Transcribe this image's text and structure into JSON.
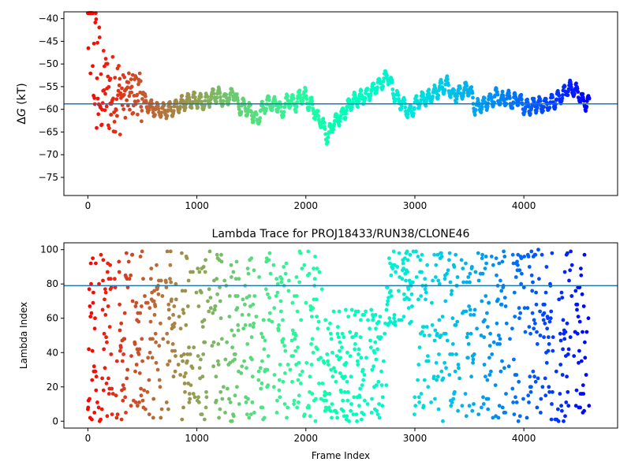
{
  "chart_data": [
    {
      "type": "scatter",
      "title": "",
      "xlabel": "",
      "ylabel_prefix": "Δ",
      "ylabel_var": "G",
      "ylabel_suffix": " (kT)",
      "xlim": [
        -220,
        4860
      ],
      "ylim": [
        -79,
        -38.5
      ],
      "xticks": [
        0,
        1000,
        2000,
        3000,
        4000
      ],
      "yticks": [
        -75,
        -70,
        -65,
        -60,
        -55,
        -50,
        -45,
        -40
      ],
      "hline": {
        "y": -58.8,
        "color": "#1f77b4"
      },
      "x_max": 4600,
      "colormap": "rainbow (red at start, violet at end)",
      "grid": false,
      "trace_points": [
        [
          0,
          -40
        ],
        [
          30,
          -42
        ],
        [
          60,
          -49
        ],
        [
          90,
          -53
        ],
        [
          120,
          -58
        ],
        [
          150,
          -55
        ],
        [
          200,
          -57
        ],
        [
          250,
          -56
        ],
        [
          300,
          -57
        ],
        [
          350,
          -57
        ],
        [
          400,
          -57
        ],
        [
          450,
          -56
        ],
        [
          500,
          -58
        ],
        [
          550,
          -59
        ],
        [
          600,
          -60
        ],
        [
          650,
          -60
        ],
        [
          700,
          -60.5
        ],
        [
          750,
          -60
        ],
        [
          800,
          -59.5
        ],
        [
          850,
          -59
        ],
        [
          900,
          -58.5
        ],
        [
          950,
          -58
        ],
        [
          1000,
          -58
        ],
        [
          1050,
          -58.5
        ],
        [
          1100,
          -58
        ],
        [
          1150,
          -57
        ],
        [
          1200,
          -57
        ],
        [
          1250,
          -58
        ],
        [
          1300,
          -57.5
        ],
        [
          1350,
          -56
        ],
        [
          1380,
          -60
        ],
        [
          1420,
          -59
        ],
        [
          1470,
          -60
        ],
        [
          1500,
          -60.5
        ],
        [
          1550,
          -62.5
        ],
        [
          1600,
          -60
        ],
        [
          1650,
          -58.5
        ],
        [
          1700,
          -59
        ],
        [
          1750,
          -59
        ],
        [
          1780,
          -61.5
        ],
        [
          1800,
          -59
        ],
        [
          1850,
          -58
        ],
        [
          1900,
          -59
        ],
        [
          1950,
          -57
        ],
        [
          2000,
          -57
        ],
        [
          2030,
          -59
        ],
        [
          2050,
          -59
        ],
        [
          2100,
          -61.5
        ],
        [
          2150,
          -63
        ],
        [
          2200,
          -66.5
        ],
        [
          2250,
          -63
        ],
        [
          2300,
          -62
        ],
        [
          2350,
          -61
        ],
        [
          2400,
          -59
        ],
        [
          2450,
          -58
        ],
        [
          2500,
          -57.5
        ],
        [
          2550,
          -57
        ],
        [
          2600,
          -56
        ],
        [
          2650,
          -55
        ],
        [
          2700,
          -54
        ],
        [
          2750,
          -52.5
        ],
        [
          2800,
          -56
        ],
        [
          2850,
          -58
        ],
        [
          2900,
          -59
        ],
        [
          2950,
          -61
        ],
        [
          3000,
          -59
        ],
        [
          3050,
          -58
        ],
        [
          3100,
          -57.5
        ],
        [
          3150,
          -57
        ],
        [
          3200,
          -56
        ],
        [
          3250,
          -55
        ],
        [
          3300,
          -54.5
        ],
        [
          3350,
          -57
        ],
        [
          3400,
          -56.5
        ],
        [
          3450,
          -56
        ],
        [
          3500,
          -55
        ],
        [
          3550,
          -59.5
        ],
        [
          3600,
          -59.5
        ],
        [
          3650,
          -58.5
        ],
        [
          3700,
          -58
        ],
        [
          3750,
          -57
        ],
        [
          3800,
          -58
        ],
        [
          3850,
          -57.5
        ],
        [
          3900,
          -58.5
        ],
        [
          3950,
          -57.5
        ],
        [
          4000,
          -59.5
        ],
        [
          4050,
          -59.5
        ],
        [
          4100,
          -59
        ],
        [
          4150,
          -59
        ],
        [
          4200,
          -59
        ],
        [
          4250,
          -58.5
        ],
        [
          4300,
          -58
        ],
        [
          4350,
          -57
        ],
        [
          4400,
          -55.5
        ],
        [
          4450,
          -55.5
        ],
        [
          4500,
          -56.5
        ],
        [
          4550,
          -58.5
        ],
        [
          4600,
          -58.5
        ]
      ]
    },
    {
      "type": "scatter",
      "title": "Lambda Trace for PROJ18433/RUN38/CLONE46",
      "xlabel": "Frame Index",
      "ylabel": "Lambda Index",
      "xlim": [
        -220,
        4860
      ],
      "ylim": [
        -4,
        104
      ],
      "xticks": [
        0,
        1000,
        2000,
        3000,
        4000
      ],
      "yticks": [
        0,
        20,
        40,
        60,
        80,
        100
      ],
      "hline": {
        "y": 79,
        "color": "#1f77b4"
      },
      "x_max": 4600,
      "colormap": "rainbow (red at start, violet at end)",
      "grid": false,
      "density_bands": [
        {
          "x0": 0,
          "x1": 1620,
          "y0": 0,
          "y1": 100
        },
        {
          "x0": 1620,
          "x1": 1830,
          "y0": 0,
          "y1": 100
        },
        {
          "x0": 1830,
          "x1": 2150,
          "y0": 0,
          "y1": 100
        },
        {
          "x0": 2150,
          "x1": 2740,
          "y0": 0,
          "y1": 65
        },
        {
          "x0": 2740,
          "x1": 2990,
          "y0": 55,
          "y1": 100
        },
        {
          "x0": 2990,
          "x1": 4600,
          "y0": 0,
          "y1": 100
        }
      ]
    }
  ]
}
